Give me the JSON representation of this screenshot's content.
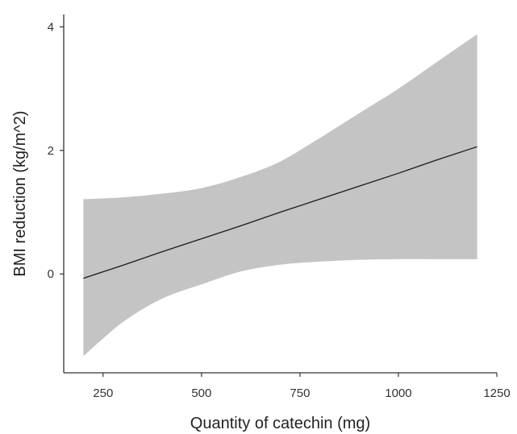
{
  "chart_data": {
    "type": "line",
    "title": "",
    "xlabel": "Quantity of catechin (mg)",
    "ylabel": "BMI reduction (kg/m^2)",
    "xlim": [
      150,
      1250
    ],
    "ylim": [
      -1.6,
      4.2
    ],
    "x_ticks": [
      250,
      500,
      750,
      1000,
      1250
    ],
    "x_tick_labels": [
      "250",
      "500",
      "750",
      "1000",
      "1250"
    ],
    "y_ticks": [
      0,
      2,
      4
    ],
    "y_tick_labels": [
      "0",
      "2",
      "4"
    ],
    "grid": false,
    "legend": "none",
    "colors": {
      "line": "#1a1a1a",
      "ribbon": "#c4c4c4",
      "axis": "#333333"
    },
    "series": [
      {
        "x": [
          200,
          300,
          400,
          500,
          600,
          700,
          800,
          900,
          1000,
          1100,
          1200
        ],
        "y": [
          -0.07,
          0.14,
          0.36,
          0.57,
          0.78,
          1.0,
          1.21,
          1.42,
          1.63,
          1.85,
          2.06
        ],
        "lower": [
          -1.33,
          -0.78,
          -0.4,
          -0.17,
          0.04,
          0.15,
          0.2,
          0.23,
          0.24,
          0.24,
          0.24
        ],
        "upper": [
          1.21,
          1.24,
          1.3,
          1.39,
          1.57,
          1.82,
          2.2,
          2.6,
          3.0,
          3.44,
          3.88
        ]
      }
    ]
  }
}
